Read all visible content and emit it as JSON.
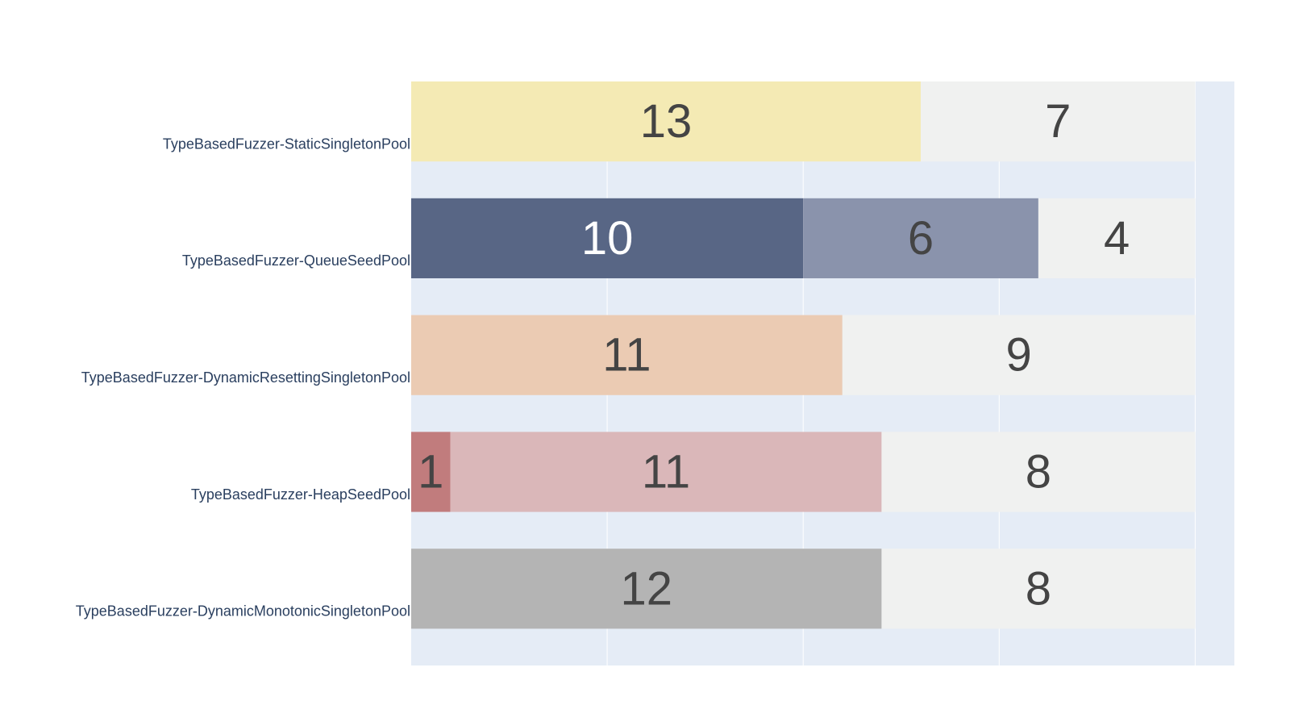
{
  "chart_data": {
    "type": "bar",
    "orientation": "horizontal",
    "barmode": "stack",
    "categories": [
      "TypeBasedFuzzer-StaticSingletonPool",
      "TypeBasedFuzzer-QueueSeedPool",
      "TypeBasedFuzzer-DynamicResettingSingletonPool",
      "TypeBasedFuzzer-HeapSeedPool",
      "TypeBasedFuzzer-DynamicMonotonicSingletonPool"
    ],
    "rows": [
      {
        "segments": [
          {
            "value": 13,
            "color": "#f4eab4",
            "text_color": "#444444"
          },
          {
            "value": 7,
            "color": "#f0f1f0",
            "text_color": "#444444"
          }
        ]
      },
      {
        "segments": [
          {
            "value": 10,
            "color": "#586685",
            "text_color": "#ffffff"
          },
          {
            "value": 6,
            "color": "#8a93ac",
            "text_color": "#444444"
          },
          {
            "value": 4,
            "color": "#f0f1f0",
            "text_color": "#444444"
          }
        ]
      },
      {
        "segments": [
          {
            "value": 11,
            "color": "#ebcbb3",
            "text_color": "#444444"
          },
          {
            "value": 9,
            "color": "#f0f1f0",
            "text_color": "#444444"
          }
        ]
      },
      {
        "segments": [
          {
            "value": 1,
            "color": "#c17c7d",
            "text_color": "#444444"
          },
          {
            "value": 11,
            "color": "#dab7b9",
            "text_color": "#444444"
          },
          {
            "value": 8,
            "color": "#f0f1f0",
            "text_color": "#444444"
          }
        ]
      },
      {
        "segments": [
          {
            "value": 12,
            "color": "#b4b4b4",
            "text_color": "#444444"
          },
          {
            "value": 8,
            "color": "#f0f1f0",
            "text_color": "#444444"
          }
        ]
      }
    ],
    "xlim": [
      0,
      21
    ],
    "x_gridlines": [
      5,
      10,
      15,
      20
    ],
    "grid": true,
    "show_x_tick_labels": false,
    "plot_background": "#e5ecf6",
    "gridline_color": "#ffffff",
    "label_color": "#2a3f5f",
    "title": "",
    "xlabel": "",
    "ylabel": ""
  }
}
